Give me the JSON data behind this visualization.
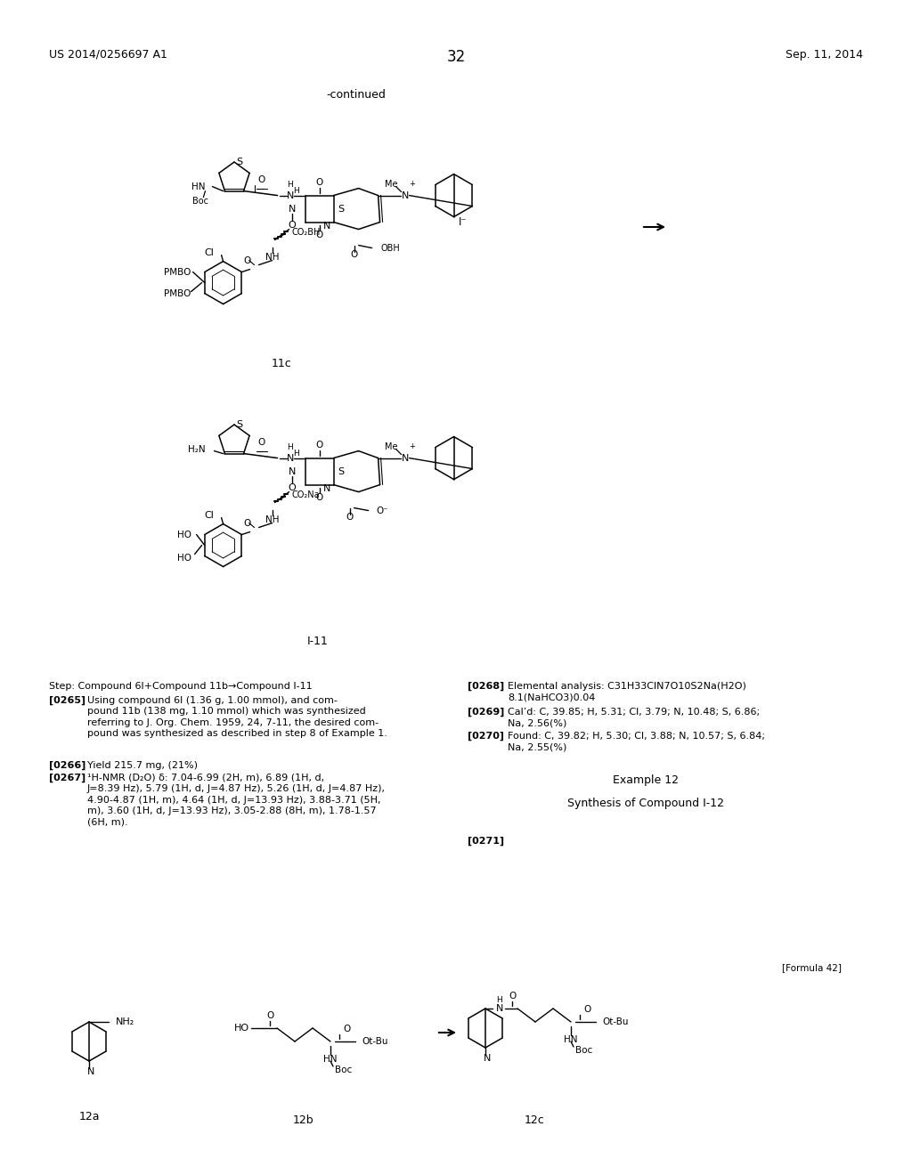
{
  "page_number": "32",
  "header_left": "US 2014/0256697 A1",
  "header_right": "Sep. 11, 2014",
  "continued_label": "-continued",
  "label_11c": "11c",
  "label_I11": "I-11",
  "formula_label": "[Formula 42]",
  "label_12a": "12a",
  "label_12b": "12b",
  "label_12c": "12c",
  "step_text": "Step: Compound 6l+Compound 11b→Compound I-11",
  "p265b": "[0265]",
  "p265t": "Using compound 6l (1.36 g, 1.00 mmol), and com-\npound 11b (138 mg, 1.10 mmol) which was synthesized\nreferring to J. Org. Chem. 1959, 24, 7-11, the desired com-\npound was synthesized as described in step 8 of Example 1.",
  "p266b": "[0266]",
  "p266t": "Yield 215.7 mg, (21%)",
  "p267b": "[0267]",
  "p267t": "¹H-NMR (D₂O) δ: 7.04-6.99 (2H, m), 6.89 (1H, d,\nJ=8.39 Hz), 5.79 (1H, d, J=4.87 Hz), 5.26 (1H, d, J=4.87 Hz),\n4.90-4.87 (1H, m), 4.64 (1H, d, J=13.93 Hz), 3.88-3.71 (5H,\nm), 3.60 (1H, d, J=13.93 Hz), 3.05-2.88 (8H, m), 1.78-1.57\n(6H, m).",
  "p268b": "[0268]",
  "p268t": "Elemental analysis: C31H33ClN7O10S2Na(H2O)\n8.1(NaHCO3)0.04",
  "p269b": "[0269]",
  "p269t": "Cal’d: C, 39.85; H, 5.31; Cl, 3.79; N, 10.48; S, 6.86;\nNa, 2.56(%)",
  "p270b": "[0270]",
  "p270t": "Found: C, 39.82; H, 5.30; Cl, 3.88; N, 10.57; S, 6.84;\nNa, 2.55(%)",
  "example12": "Example 12",
  "synthesis12": "Synthesis of Compound I-12",
  "p271b": "[0271]",
  "bg": "#ffffff",
  "fg": "#000000"
}
